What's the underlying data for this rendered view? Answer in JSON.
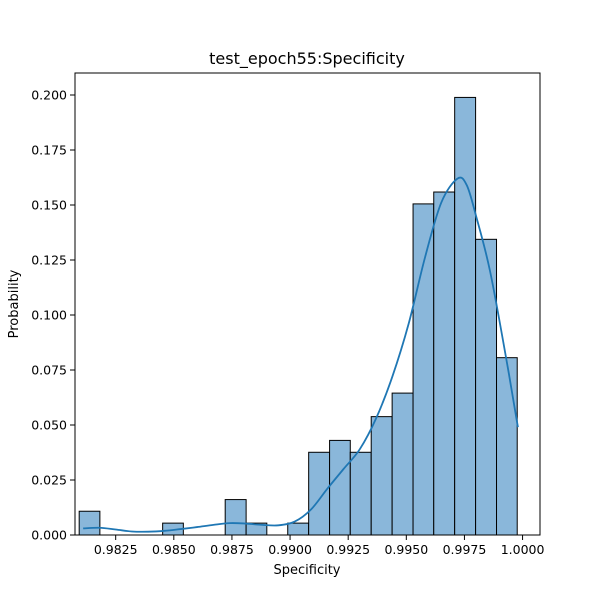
{
  "chart_data": {
    "type": "bar",
    "subtype": "histogram",
    "title": "test_epoch55:Specificity",
    "xlabel": "Specificity",
    "ylabel": "Probability",
    "xlim": [
      0.98075,
      1.00075
    ],
    "ylim": [
      0,
      0.21
    ],
    "xticks": [
      {
        "value": 0.9825,
        "label": "0.9825"
      },
      {
        "value": 0.985,
        "label": "0.9850"
      },
      {
        "value": 0.9875,
        "label": "0.9875"
      },
      {
        "value": 0.99,
        "label": "0.9900"
      },
      {
        "value": 0.9925,
        "label": "0.9925"
      },
      {
        "value": 0.995,
        "label": "0.9950"
      },
      {
        "value": 0.9975,
        "label": "0.9975"
      },
      {
        "value": 1.0,
        "label": "1.0000"
      }
    ],
    "yticks": [
      {
        "value": 0.0,
        "label": "0.000"
      },
      {
        "value": 0.025,
        "label": "0.025"
      },
      {
        "value": 0.05,
        "label": "0.050"
      },
      {
        "value": 0.075,
        "label": "0.075"
      },
      {
        "value": 0.1,
        "label": "0.100"
      },
      {
        "value": 0.125,
        "label": "0.125"
      },
      {
        "value": 0.15,
        "label": "0.150"
      },
      {
        "value": 0.175,
        "label": "0.175"
      },
      {
        "value": 0.2,
        "label": "0.200"
      }
    ],
    "grid": false,
    "legend": "none",
    "bar_color": "#8ab7da",
    "bar_edge_color": "#000000",
    "kde_color": "#1f77b4",
    "bins": [
      {
        "start": 0.98093,
        "end": 0.98182,
        "value": 0.0108
      },
      {
        "start": 0.98182,
        "end": 0.98272,
        "value": 0.0
      },
      {
        "start": 0.98272,
        "end": 0.98362,
        "value": 0.0
      },
      {
        "start": 0.98362,
        "end": 0.98452,
        "value": 0.0
      },
      {
        "start": 0.98452,
        "end": 0.98541,
        "value": 0.0054
      },
      {
        "start": 0.98541,
        "end": 0.98631,
        "value": 0.0
      },
      {
        "start": 0.98631,
        "end": 0.98721,
        "value": 0.0
      },
      {
        "start": 0.98721,
        "end": 0.98811,
        "value": 0.0161
      },
      {
        "start": 0.98811,
        "end": 0.989,
        "value": 0.0054
      },
      {
        "start": 0.989,
        "end": 0.9899,
        "value": 0.0
      },
      {
        "start": 0.9899,
        "end": 0.9908,
        "value": 0.0054
      },
      {
        "start": 0.9908,
        "end": 0.9917,
        "value": 0.0376
      },
      {
        "start": 0.9917,
        "end": 0.99259,
        "value": 0.043
      },
      {
        "start": 0.99259,
        "end": 0.99349,
        "value": 0.0376
      },
      {
        "start": 0.99349,
        "end": 0.99439,
        "value": 0.0538
      },
      {
        "start": 0.99439,
        "end": 0.99529,
        "value": 0.0645
      },
      {
        "start": 0.99529,
        "end": 0.99618,
        "value": 0.1505
      },
      {
        "start": 0.99618,
        "end": 0.99708,
        "value": 0.1559
      },
      {
        "start": 0.99708,
        "end": 0.99798,
        "value": 0.1989
      },
      {
        "start": 0.99798,
        "end": 0.99888,
        "value": 0.1344
      },
      {
        "start": 0.99888,
        "end": 0.99977,
        "value": 0.0806
      }
    ],
    "kde": {
      "x": [
        0.9811,
        0.9818,
        0.9825,
        0.9832,
        0.9839,
        0.9846,
        0.9853,
        0.986,
        0.9867,
        0.9874,
        0.9881,
        0.9888,
        0.9895,
        0.9902,
        0.9909,
        0.9916,
        0.9923,
        0.993,
        0.9937,
        0.9944,
        0.9951,
        0.9958,
        0.9965,
        0.9972,
        0.9976,
        0.998,
        0.9986,
        0.9993,
        0.9998
      ],
      "y": [
        0.003,
        0.0033,
        0.0025,
        0.0016,
        0.0015,
        0.0019,
        0.0027,
        0.0036,
        0.0046,
        0.0054,
        0.0052,
        0.0046,
        0.0044,
        0.0061,
        0.0116,
        0.021,
        0.03,
        0.039,
        0.053,
        0.072,
        0.096,
        0.126,
        0.151,
        0.162,
        0.159,
        0.145,
        0.12,
        0.08,
        0.049
      ]
    }
  }
}
